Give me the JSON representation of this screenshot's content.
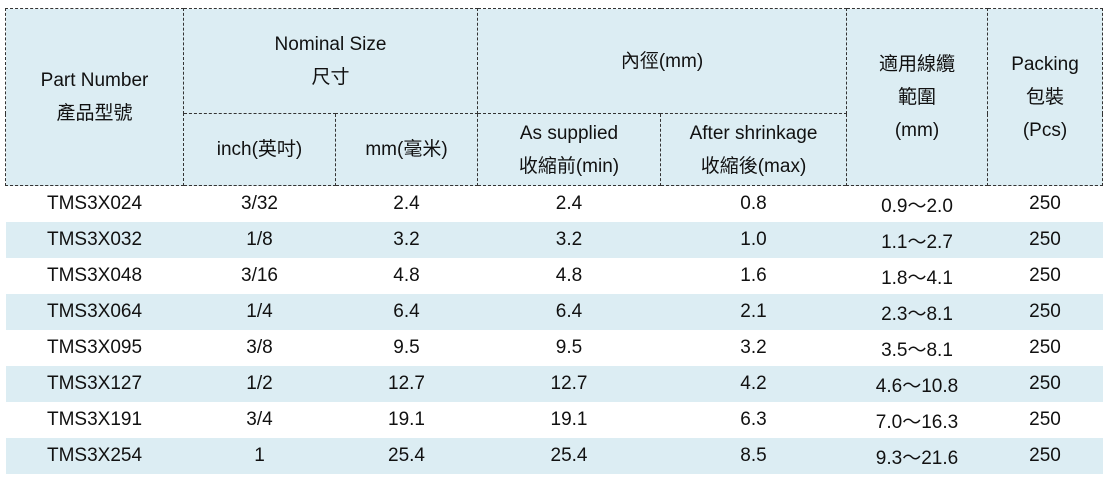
{
  "header": {
    "part_number": [
      "Part Number",
      "產品型號"
    ],
    "nominal_size": [
      "Nominal Size",
      "尺寸"
    ],
    "inch": [
      "inch(英吋)"
    ],
    "mm": [
      "mm(毫米)"
    ],
    "inner_diameter": [
      "內徑(mm)"
    ],
    "as_supplied": [
      "As supplied",
      "收縮前(min)"
    ],
    "after_shrinkage": [
      "After shrinkage",
      "收縮後(max)"
    ],
    "cable_range": [
      "適用線纜",
      "範圍",
      "(mm)"
    ],
    "packing": [
      "Packing",
      "包裝",
      "(Pcs)"
    ]
  },
  "table": {
    "rows": [
      [
        "TMS3X024",
        "3/32",
        "2.4",
        "2.4",
        "0.8",
        "0.9～2.0",
        "250"
      ],
      [
        "TMS3X032",
        "1/8",
        "3.2",
        "3.2",
        "1.0",
        "1.1～2.7",
        "250"
      ],
      [
        "TMS3X048",
        "3/16",
        "4.8",
        "4.8",
        "1.6",
        "1.8～4.1",
        "250"
      ],
      [
        "TMS3X064",
        "1/4",
        "6.4",
        "6.4",
        "2.1",
        "2.3～8.1",
        "250"
      ],
      [
        "TMS3X095",
        "3/8",
        "9.5",
        "9.5",
        "3.2",
        "3.5～8.1",
        "250"
      ],
      [
        "TMS3X127",
        "1/2",
        "12.7",
        "12.7",
        "4.2",
        "4.6～10.8",
        "250"
      ],
      [
        "TMS3X191",
        "3/4",
        "19.1",
        "19.1",
        "6.3",
        "7.0～16.3",
        "250"
      ],
      [
        "TMS3X254",
        "1",
        "25.4",
        "25.4",
        "8.5",
        "9.3～21.6",
        "250"
      ]
    ]
  }
}
